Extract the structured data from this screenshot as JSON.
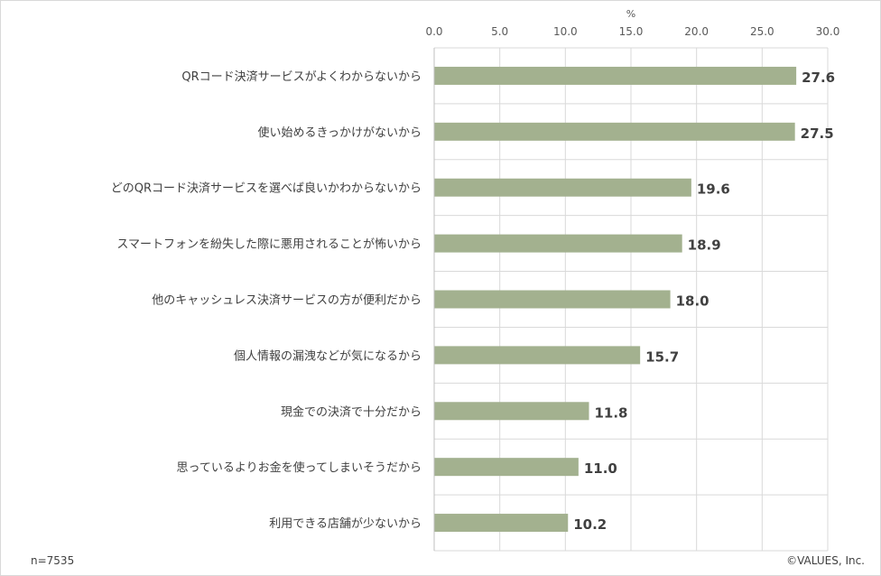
{
  "chart_data": {
    "type": "bar",
    "orientation": "horizontal",
    "axis_unit": "%",
    "xlim": [
      0,
      30
    ],
    "xticks": [
      "0.0",
      "5.0",
      "10.0",
      "15.0",
      "20.0",
      "25.0",
      "30.0"
    ],
    "grid": true,
    "bar_color": "#a3b18f",
    "categories": [
      "QRコード決済サービスがよくわからないから",
      "使い始めるきっかけがないから",
      "どのQRコード決済サービスを選べば良いかわからないから",
      "スマートフォンを紛失した際に悪用されることが怖いから",
      "他のキャッシュレス決済サービスの方が便利だから",
      "個人情報の漏洩などが気になるから",
      "現金での決済で十分だから",
      "思っているよりお金を使ってしまいそうだから",
      "利用できる店舗が少ないから"
    ],
    "values": [
      27.6,
      27.5,
      19.6,
      18.9,
      18.0,
      15.7,
      11.8,
      11.0,
      10.2
    ],
    "value_labels": [
      "27.6",
      "27.5",
      "19.6",
      "18.9",
      "18.0",
      "15.7",
      "11.8",
      "11.0",
      "10.2"
    ]
  },
  "footer": {
    "sample_size": "n=7535",
    "copyright": "©VALUES, Inc."
  }
}
